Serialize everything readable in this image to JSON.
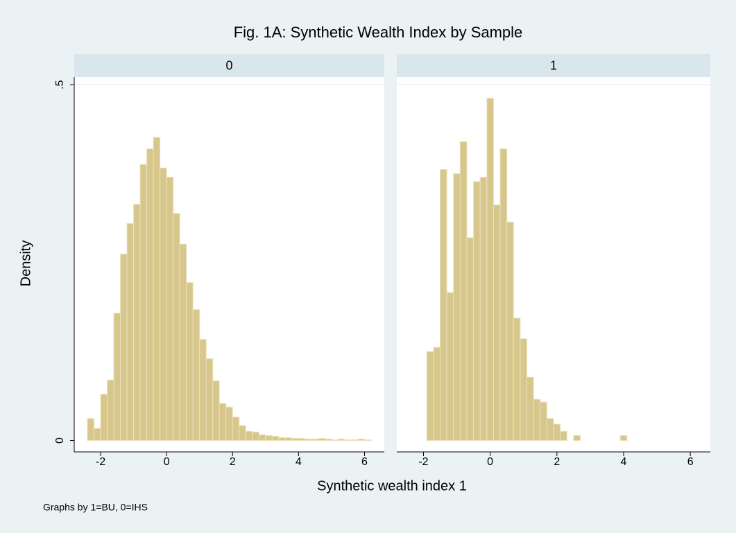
{
  "chart_data": {
    "type": "histogram",
    "title": "Fig. 1A: Synthetic Wealth Index by Sample",
    "y_label": "Density",
    "x_label": "Synthetic wealth index 1",
    "note": "Graphs by 1=BU, 0=IHS",
    "xlim": [
      -2.8,
      6.6
    ],
    "xticks": [
      -2,
      0,
      2,
      4,
      6
    ],
    "ylim": [
      -0.016,
      0.511
    ],
    "yticks": [
      0,
      {
        "value": 0.5,
        "label": ".5"
      }
    ],
    "grid": true,
    "color": "#d7c78c",
    "edge_color": "#ebe2bb",
    "panels": [
      {
        "name": "0",
        "bins": [
          -2.4,
          -2.2,
          -2.0,
          -1.8,
          -1.6,
          -1.4,
          -1.2,
          -1.0,
          -0.8,
          -0.6,
          -0.4,
          -0.2,
          0.0,
          0.2,
          0.4,
          0.6,
          0.8,
          1.0,
          1.2,
          1.4,
          1.6,
          1.8,
          2.0,
          2.2,
          2.4,
          2.6,
          2.8,
          3.0,
          3.2,
          3.4,
          3.6,
          3.8,
          4.0,
          4.2,
          4.4,
          4.6,
          4.8,
          5.0,
          5.2,
          5.4,
          5.6,
          5.8,
          6.0,
          6.2
        ],
        "values": [
          0.031,
          0.017,
          0.065,
          0.085,
          0.179,
          0.262,
          0.305,
          0.332,
          0.388,
          0.41,
          0.426,
          0.383,
          0.37,
          0.319,
          0.276,
          0.222,
          0.184,
          0.142,
          0.115,
          0.084,
          0.052,
          0.047,
          0.033,
          0.021,
          0.013,
          0.012,
          0.008,
          0.007,
          0.006,
          0.004,
          0.004,
          0.003,
          0.003,
          0.002,
          0.002,
          0.003,
          0.002,
          0.001,
          0.002,
          0.001,
          0.001,
          0.002,
          0.001
        ]
      },
      {
        "name": "1",
        "bins": [
          -1.9,
          -1.7,
          -1.5,
          -1.3,
          -1.1,
          -0.9,
          -0.7,
          -0.5,
          -0.3,
          -0.1,
          0.1,
          0.3,
          0.5,
          0.7,
          0.9,
          1.1,
          1.3,
          1.5,
          1.7,
          1.9,
          2.1,
          2.3,
          2.5,
          2.7,
          2.9,
          3.1,
          3.3,
          3.5,
          3.7,
          3.9,
          4.1
        ],
        "values": [
          0.125,
          0.131,
          0.381,
          0.208,
          0.375,
          0.42,
          0.285,
          0.364,
          0.37,
          0.481,
          0.331,
          0.41,
          0.307,
          0.172,
          0.143,
          0.089,
          0.058,
          0.054,
          0.031,
          0.023,
          0.013,
          0,
          0.007,
          0,
          0,
          0,
          0,
          0,
          0,
          0.007
        ]
      }
    ]
  }
}
